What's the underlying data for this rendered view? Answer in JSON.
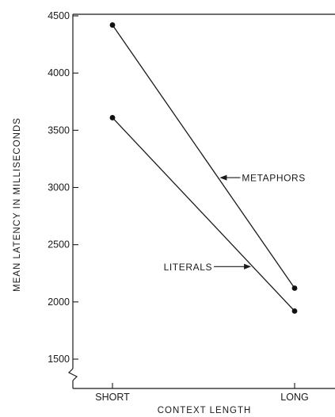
{
  "chart_data": {
    "type": "line",
    "categories": [
      "SHORT",
      "LONG"
    ],
    "xlabel": "CONTEXT LENGTH",
    "ylabel": "MEAN LATENCY IN MILLISECONDS",
    "ylim": [
      1500,
      4500
    ],
    "yticks": [
      1500,
      2000,
      2500,
      3000,
      3500,
      4000,
      4500
    ],
    "axis_break": true,
    "grid": false,
    "series": [
      {
        "name": "METAPHORS",
        "values": [
          4420,
          2120
        ]
      },
      {
        "name": "LITERALS",
        "values": [
          3610,
          1920
        ]
      }
    ],
    "annotations": [
      {
        "text": "METAPHORS",
        "series": "METAPHORS",
        "arrow": "left"
      },
      {
        "text": "LITERALS",
        "series": "LITERALS",
        "arrow": "right"
      }
    ]
  }
}
